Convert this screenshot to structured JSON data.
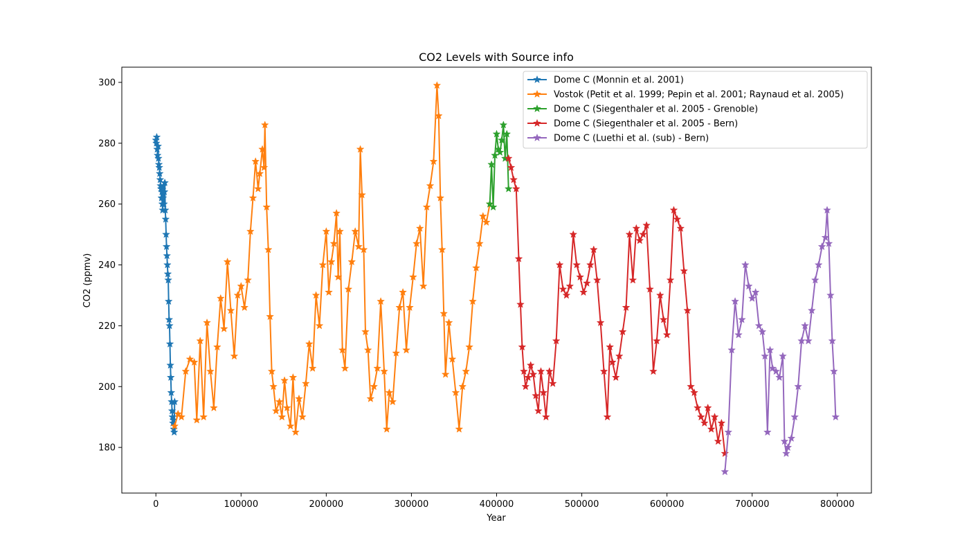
{
  "chart_data": {
    "type": "line",
    "title": "CO2 Levels with Source info",
    "xlabel": "Year",
    "ylabel": "CO2 (ppmv)",
    "xlim": [
      -40000,
      840000
    ],
    "ylim": [
      165,
      305
    ],
    "xticks": [
      0,
      100000,
      200000,
      300000,
      400000,
      500000,
      600000,
      700000,
      800000
    ],
    "yticks": [
      180,
      200,
      220,
      240,
      260,
      280,
      300
    ],
    "grid": false,
    "legend_position": "upper right",
    "marker": "star",
    "series": [
      {
        "name": "Dome C (Monnin et al. 2001)",
        "color": "#1f77b4",
        "x": [
          0,
          500,
          1000,
          1500,
          2000,
          2500,
          3000,
          3500,
          4000,
          4500,
          5000,
          5500,
          6000,
          6500,
          7000,
          7500,
          8000,
          8500,
          9000,
          9500,
          10000,
          10500,
          11000,
          11500,
          12000,
          12500,
          13000,
          13500,
          14000,
          14500,
          15000,
          15500,
          16000,
          16500,
          17000,
          17500,
          18000,
          18500,
          19000,
          19500,
          20000,
          20500,
          21000,
          21500,
          22000
        ],
        "y": [
          281,
          280,
          282,
          278,
          276,
          279,
          275,
          273,
          272,
          270,
          268,
          266,
          265,
          262,
          264,
          260,
          258,
          262,
          266,
          260,
          264,
          267,
          258,
          255,
          250,
          246,
          243,
          240,
          237,
          235,
          228,
          222,
          220,
          214,
          207,
          203,
          198,
          195,
          192,
          190,
          188,
          189,
          186,
          185,
          195
        ]
      },
      {
        "name": "Vostok (Petit et al. 1999; Pepin et al. 2001; Raynaud et al. 2005)",
        "color": "#ff7f0e",
        "x": [
          22000,
          26000,
          30000,
          35000,
          40000,
          45000,
          48000,
          52000,
          56000,
          60000,
          64000,
          68000,
          72000,
          76000,
          80000,
          84000,
          88000,
          92000,
          96000,
          100000,
          104000,
          108000,
          111000,
          114000,
          117000,
          120000,
          122000,
          125000,
          127000,
          128000,
          130000,
          132000,
          134000,
          136000,
          138000,
          141000,
          145000,
          148000,
          151000,
          154000,
          158000,
          161000,
          164000,
          168000,
          172000,
          176000,
          180000,
          184000,
          188000,
          192000,
          196000,
          200000,
          203000,
          206000,
          209000,
          212000,
          214000,
          216000,
          219000,
          222000,
          226000,
          230000,
          234000,
          238000,
          240000,
          242000,
          244000,
          246000,
          249000,
          252000,
          256000,
          260000,
          264000,
          268000,
          271000,
          274000,
          278000,
          282000,
          286000,
          290000,
          294000,
          298000,
          302000,
          306000,
          310000,
          314000,
          318000,
          322000,
          326000,
          330000,
          332000,
          334000,
          336000,
          338000,
          340000,
          344000,
          348000,
          352000,
          356000,
          360000,
          364000,
          368000,
          372000,
          376000,
          380000,
          384000,
          388000,
          392000
        ],
        "y": [
          187,
          191,
          190,
          205,
          209,
          208,
          189,
          215,
          190,
          221,
          205,
          193,
          213,
          229,
          219,
          241,
          225,
          210,
          230,
          233,
          226,
          235,
          251,
          262,
          274,
          265,
          270,
          278,
          272,
          286,
          259,
          245,
          223,
          205,
          200,
          192,
          195,
          190,
          202,
          193,
          187,
          203,
          185,
          196,
          190,
          201,
          214,
          206,
          230,
          220,
          240,
          251,
          231,
          241,
          247,
          257,
          236,
          251,
          212,
          206,
          232,
          241,
          251,
          246,
          278,
          263,
          245,
          218,
          212,
          196,
          200,
          206,
          228,
          205,
          186,
          198,
          195,
          211,
          226,
          231,
          212,
          226,
          236,
          247,
          252,
          233,
          259,
          266,
          274,
          299,
          289,
          262,
          245,
          224,
          204,
          221,
          209,
          198,
          186,
          200,
          205,
          213,
          228,
          239,
          247,
          256,
          254,
          260
        ]
      },
      {
        "name": "Dome C (Siegenthaler et al. 2005 - Grenoble)",
        "color": "#2ca02c",
        "x": [
          392000,
          394000,
          396000,
          398000,
          400000,
          402000,
          404000,
          406000,
          408000,
          410000,
          412000,
          414000
        ],
        "y": [
          260,
          273,
          259,
          276,
          283,
          278,
          277,
          281,
          286,
          275,
          283,
          265
        ]
      },
      {
        "name": "Dome C (Siegenthaler et al. 2005 - Bern)",
        "color": "#d62728",
        "x": [
          414000,
          417000,
          420000,
          423000,
          426000,
          428000,
          430000,
          432000,
          434000,
          437000,
          440000,
          443000,
          446000,
          449000,
          452000,
          455000,
          458000,
          462000,
          466000,
          470000,
          474000,
          478000,
          482000,
          486000,
          490000,
          494000,
          498000,
          502000,
          506000,
          510000,
          514000,
          518000,
          522000,
          526000,
          530000,
          533000,
          536000,
          540000,
          544000,
          548000,
          552000,
          556000,
          560000,
          564000,
          568000,
          572000,
          576000,
          580000,
          584000,
          588000,
          592000,
          596000,
          600000,
          604000,
          608000,
          612000,
          616000,
          620000,
          624000,
          628000,
          632000,
          636000,
          640000,
          644000,
          648000,
          652000,
          656000,
          660000,
          664000,
          668000
        ],
        "y": [
          275,
          272,
          268,
          265,
          242,
          227,
          213,
          205,
          200,
          203,
          207,
          204,
          197,
          192,
          205,
          198,
          190,
          205,
          201,
          215,
          240,
          232,
          230,
          233,
          250,
          240,
          236,
          231,
          234,
          240,
          245,
          235,
          221,
          205,
          190,
          213,
          208,
          203,
          210,
          218,
          226,
          250,
          235,
          252,
          248,
          250,
          253,
          232,
          205,
          215,
          230,
          222,
          217,
          235,
          258,
          255,
          252,
          238,
          225,
          200,
          198,
          193,
          190,
          188,
          193,
          186,
          190,
          182,
          188,
          178
        ]
      },
      {
        "name": "Dome C (Luethi et al. (sub) - Bern)",
        "color": "#9467bd",
        "x": [
          668000,
          672000,
          676000,
          680000,
          684000,
          688000,
          692000,
          696000,
          700000,
          704000,
          708000,
          712000,
          715000,
          718000,
          721000,
          724000,
          728000,
          732000,
          736000,
          738000,
          740000,
          742000,
          746000,
          750000,
          754000,
          758000,
          762000,
          766000,
          770000,
          774000,
          778000,
          782000,
          786000,
          788000,
          790000,
          792000,
          794000,
          796000,
          798000
        ],
        "y": [
          172,
          185,
          212,
          228,
          217,
          222,
          240,
          233,
          229,
          231,
          220,
          218,
          210,
          185,
          212,
          206,
          205,
          203,
          210,
          182,
          178,
          180,
          183,
          190,
          200,
          215,
          220,
          215,
          225,
          235,
          240,
          246,
          249,
          258,
          247,
          230,
          215,
          205,
          190
        ]
      }
    ]
  }
}
